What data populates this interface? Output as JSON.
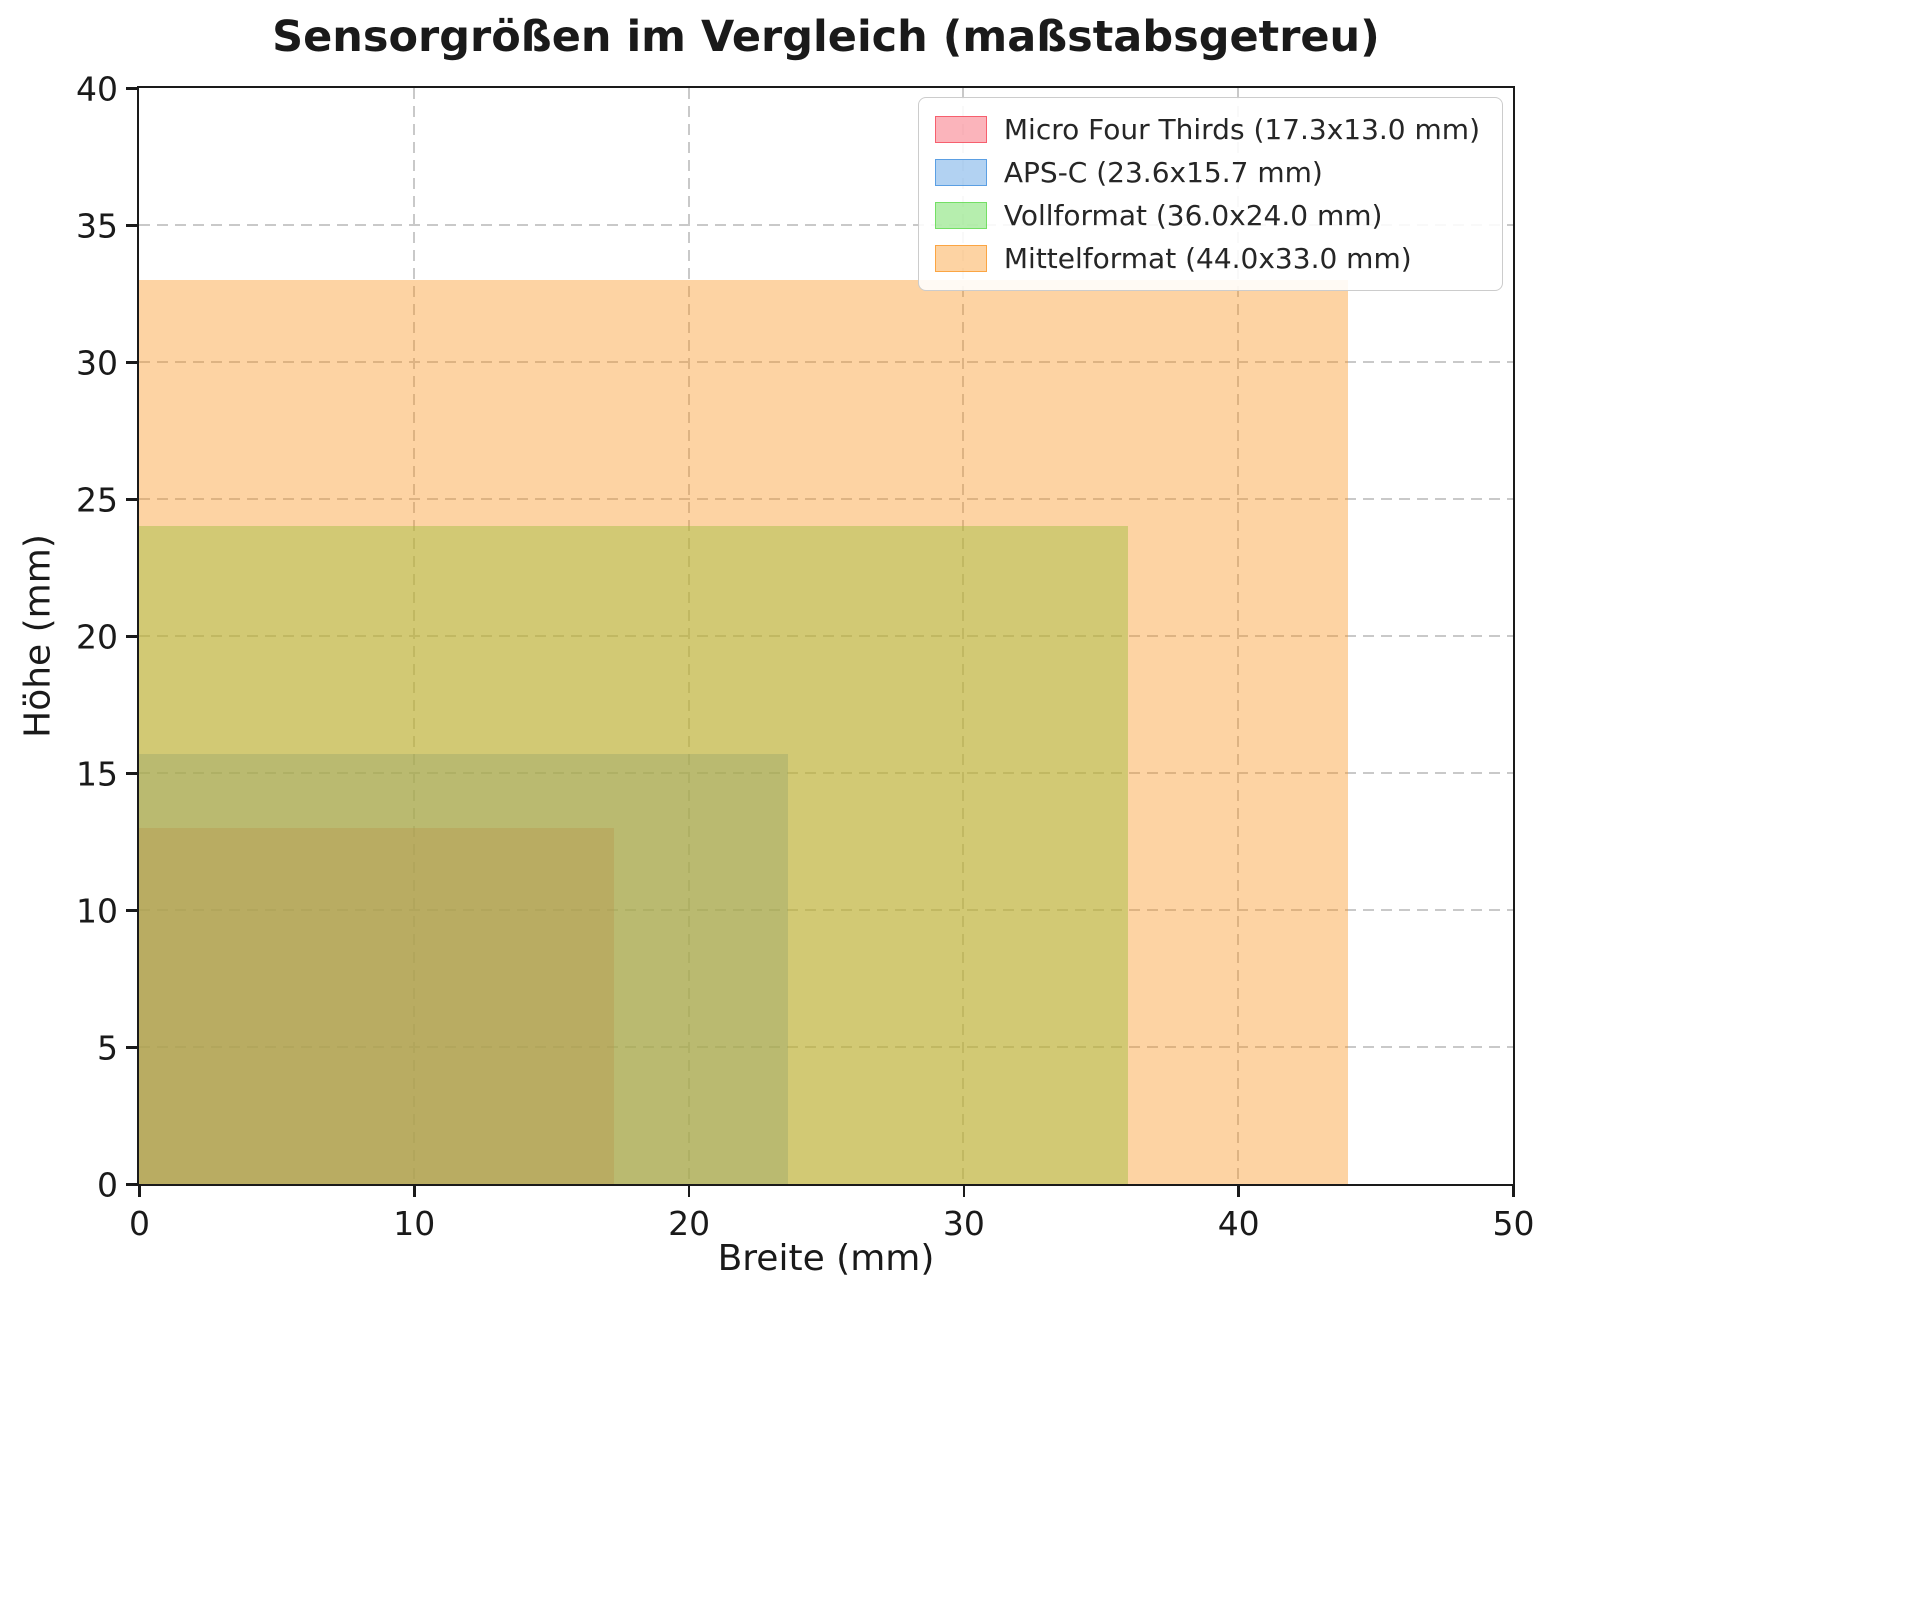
{
  "chart_data": {
    "type": "area",
    "title": "Sensorgrößen im Vergleich (maßstabsgetreu)",
    "xlabel": "Breite (mm)",
    "ylabel": "Höhe (mm)",
    "xlim": [
      0,
      50
    ],
    "ylim": [
      0,
      40
    ],
    "xticks": [
      0,
      10,
      20,
      30,
      40,
      50
    ],
    "yticks": [
      0,
      5,
      10,
      15,
      20,
      25,
      30,
      35,
      40
    ],
    "grid": true,
    "grid_color": "#c9c9c9",
    "grid_style": "dashed",
    "aspect": "equal",
    "legend_position": "upper-right",
    "text_color": "#1a1a1a",
    "series": [
      {
        "name": "Micro Four Thirds (17.3x13.0 mm)",
        "width_mm": 17.3,
        "height_mm": 13.0,
        "x0": 0,
        "y0": 0,
        "color": "#f44354",
        "fill": "rgba(244,67,84,0.40)",
        "edge": "rgba(244,67,84,0.75)"
      },
      {
        "name": "APS-C (23.6x15.7 mm)",
        "width_mm": 23.6,
        "height_mm": 15.7,
        "x0": 0,
        "y0": 0,
        "color": "#3e8ede",
        "fill": "rgba(62,142,222,0.40)",
        "edge": "rgba(62,142,222,0.75)"
      },
      {
        "name": "Vollformat (36.0x24.0 mm)",
        "width_mm": 36.0,
        "height_mm": 24.0,
        "x0": 0,
        "y0": 0,
        "color": "#5ed94c",
        "fill": "rgba(94,217,76,0.45)",
        "edge": "rgba(94,217,76,0.75)"
      },
      {
        "name": "Mittelformat (44.0x33.0 mm)",
        "width_mm": 44.0,
        "height_mm": 33.0,
        "x0": 0,
        "y0": 0,
        "color": "#fa9623",
        "fill": "rgba(250,150,35,0.42)",
        "edge": "rgba(250,150,35,0.75)"
      }
    ]
  }
}
